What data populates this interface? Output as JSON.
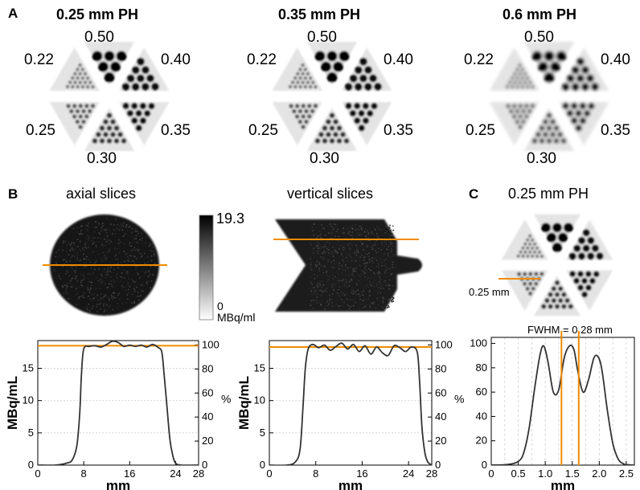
{
  "panels": {
    "A": "A",
    "B": "B",
    "C": "C"
  },
  "phantoms": [
    {
      "title": "0.25 mm PH",
      "sizes": {
        "top": "0.50",
        "ur": "0.40",
        "lr": "0.35",
        "bottom": "0.30",
        "ll": "0.25",
        "ul": "0.22"
      }
    },
    {
      "title": "0.35 mm PH",
      "sizes": {
        "top": "0.50",
        "ur": "0.40",
        "lr": "0.35",
        "bottom": "0.30",
        "ll": "0.25",
        "ul": "0.22"
      }
    },
    {
      "title": "0.6 mm PH",
      "sizes": {
        "top": "0.50",
        "ur": "0.40",
        "lr": "0.35",
        "bottom": "0.30",
        "ll": "0.25",
        "ul": "0.22"
      }
    }
  ],
  "panelB": {
    "axial_title": "axial slices",
    "vertical_title": "vertical slices",
    "colorbar_max": "19.3",
    "colorbar_min": "0",
    "colorbar_unit": "MBq/ml"
  },
  "panelC": {
    "title": "0.25 mm PH",
    "sector_label": "0.25 mm",
    "fwhm_label": "FWHM = 0.28 mm"
  },
  "colors": {
    "profile_line": "#f08c00",
    "curve": "#333333",
    "grid": "#c8c8c8"
  },
  "chart_data": [
    {
      "type": "line",
      "xlabel": "mm",
      "ylabel": "MBq/mL",
      "y2label": "%",
      "xlim": [
        0,
        28
      ],
      "ylim": [
        0,
        19.3
      ],
      "y2lim": [
        0,
        100
      ],
      "xticks": [
        "0",
        "8",
        "16",
        "24",
        "28"
      ],
      "yticks": [
        "0",
        "5",
        "10",
        "15"
      ],
      "y2ticks": [
        "0",
        "20",
        "40",
        "60",
        "80",
        "100"
      ],
      "reference_y": 18.5,
      "x": [
        0,
        3,
        5,
        6,
        6.8,
        7.3,
        7.6,
        8,
        9,
        10,
        11,
        12,
        13,
        14,
        15,
        16,
        17,
        18,
        19,
        20,
        21,
        21.6,
        22,
        22.5,
        23,
        23.5,
        24,
        25,
        28
      ],
      "y": [
        0,
        0,
        0.3,
        0.8,
        3,
        8,
        14,
        18,
        18.4,
        18.5,
        18.3,
        18.7,
        19.2,
        19.0,
        18.4,
        18.6,
        18.4,
        18.6,
        18.3,
        18.7,
        18.2,
        17.5,
        14,
        9,
        4,
        1.5,
        0.3,
        0,
        0
      ]
    },
    {
      "type": "line",
      "xlabel": "mm",
      "ylabel": "MBq/mL",
      "y2label": "%",
      "xlim": [
        0,
        28
      ],
      "ylim": [
        0,
        19.3
      ],
      "y2lim": [
        0,
        100
      ],
      "xticks": [
        "0",
        "8",
        "16",
        "24",
        "28"
      ],
      "yticks": [
        "0",
        "5",
        "10",
        "15"
      ],
      "y2ticks": [
        "0",
        "20",
        "40",
        "60",
        "80",
        "100"
      ],
      "reference_y": 18.3,
      "x": [
        0,
        3,
        4.5,
        5.3,
        5.8,
        6.2,
        6.7,
        7.5,
        8.5,
        9.5,
        10.5,
        11.5,
        12.5,
        13.5,
        14.5,
        15.5,
        16.5,
        17.5,
        18.5,
        19.5,
        20.5,
        21.5,
        22.5,
        23.5,
        24.5,
        25.5,
        25.9,
        26.3,
        26.8,
        27.3,
        28
      ],
      "y": [
        0,
        0,
        0.5,
        2.5,
        9,
        15,
        18,
        18.7,
        18.2,
        18.6,
        17.8,
        18.4,
        18.9,
        18.0,
        18.7,
        17.6,
        18.5,
        17.2,
        18.3,
        17.4,
        17.0,
        18.5,
        18.2,
        17.6,
        18.3,
        17.5,
        13,
        6,
        2,
        0.5,
        0
      ]
    },
    {
      "type": "line",
      "xlabel": "mm",
      "ylabel": "",
      "xlim": [
        0,
        2.65
      ],
      "ylim": [
        0,
        105
      ],
      "xticks": [
        "0",
        "0.5",
        "1.0",
        "1.5",
        "2.0",
        "2.5"
      ],
      "yticks": [
        "0",
        "20",
        "40",
        "60",
        "80",
        "100"
      ],
      "vlines": [
        1.3,
        1.62
      ],
      "x": [
        0,
        0.3,
        0.5,
        0.6,
        0.7,
        0.8,
        0.9,
        0.97,
        1.05,
        1.15,
        1.25,
        1.35,
        1.45,
        1.53,
        1.6,
        1.7,
        1.8,
        1.9,
        1.98,
        2.05,
        2.15,
        2.25,
        2.35,
        2.45,
        2.55,
        2.65
      ],
      "y": [
        0,
        0.5,
        3,
        10,
        30,
        62,
        90,
        98,
        85,
        60,
        62,
        88,
        98,
        95,
        78,
        60,
        70,
        88,
        89,
        78,
        45,
        18,
        5,
        1,
        0.2,
        0
      ]
    }
  ]
}
